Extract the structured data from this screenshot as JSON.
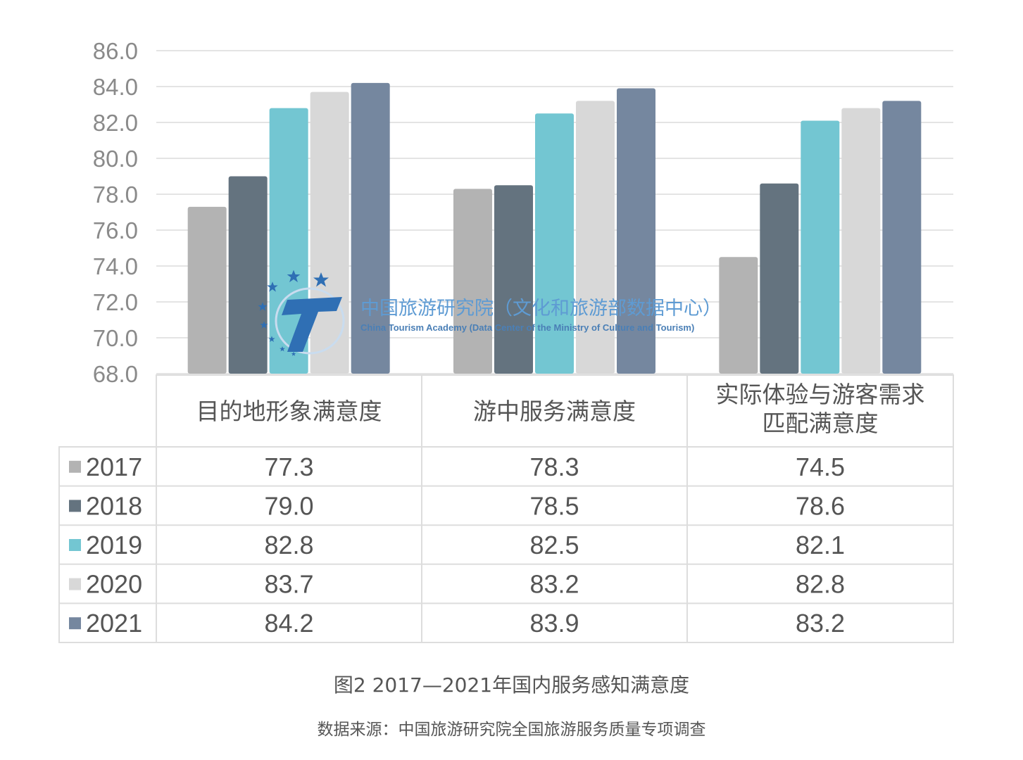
{
  "chart_data": {
    "type": "bar",
    "categories": [
      "目的地形象满意度",
      "游中服务满意度",
      "实际体验与游客需求匹配满意度"
    ],
    "category_lines": [
      [
        "目的地形象满意度"
      ],
      [
        "游中服务满意度"
      ],
      [
        "实际体验与游客需求",
        "匹配满意度"
      ]
    ],
    "series": [
      {
        "name": "2017",
        "values": [
          77.3,
          78.3,
          74.5
        ],
        "color": "#b3b3b3"
      },
      {
        "name": "2018",
        "values": [
          79.0,
          78.5,
          78.6
        ],
        "color": "#64737f"
      },
      {
        "name": "2019",
        "values": [
          82.8,
          82.5,
          82.1
        ],
        "color": "#73c6d2"
      },
      {
        "name": "2020",
        "values": [
          83.7,
          83.2,
          82.8
        ],
        "color": "#d8d8d8"
      },
      {
        "name": "2021",
        "values": [
          84.2,
          83.9,
          83.2
        ],
        "color": "#75879f"
      }
    ],
    "table_values": [
      [
        "77.3",
        "78.3",
        "74.5"
      ],
      [
        "79.0",
        "78.5",
        "78.6"
      ],
      [
        "82.8",
        "82.5",
        "82.1"
      ],
      [
        "83.7",
        "83.2",
        "82.8"
      ],
      [
        "84.2",
        "83.9",
        "83.2"
      ]
    ],
    "ylim": [
      68,
      86
    ],
    "yticks": [
      68,
      70,
      72,
      74,
      76,
      78,
      80,
      82,
      84,
      86
    ],
    "ytick_labels": [
      "68.0",
      "70.0",
      "72.0",
      "74.0",
      "76.0",
      "78.0",
      "80.0",
      "82.0",
      "84.0",
      "86.0"
    ],
    "grid": true,
    "legend": "data-table-left",
    "title": "图2 2017—2021年国内服务感知满意度",
    "source": "数据来源：中国旅游研究院全国旅游服务质量专项调查"
  },
  "watermark": {
    "cn": "中国旅游研究院（文化和旅游部数据中心）",
    "en": "China Tourism Academy (Data Center of the Ministry of Culture and Tourism)",
    "logo_letter": "T"
  }
}
